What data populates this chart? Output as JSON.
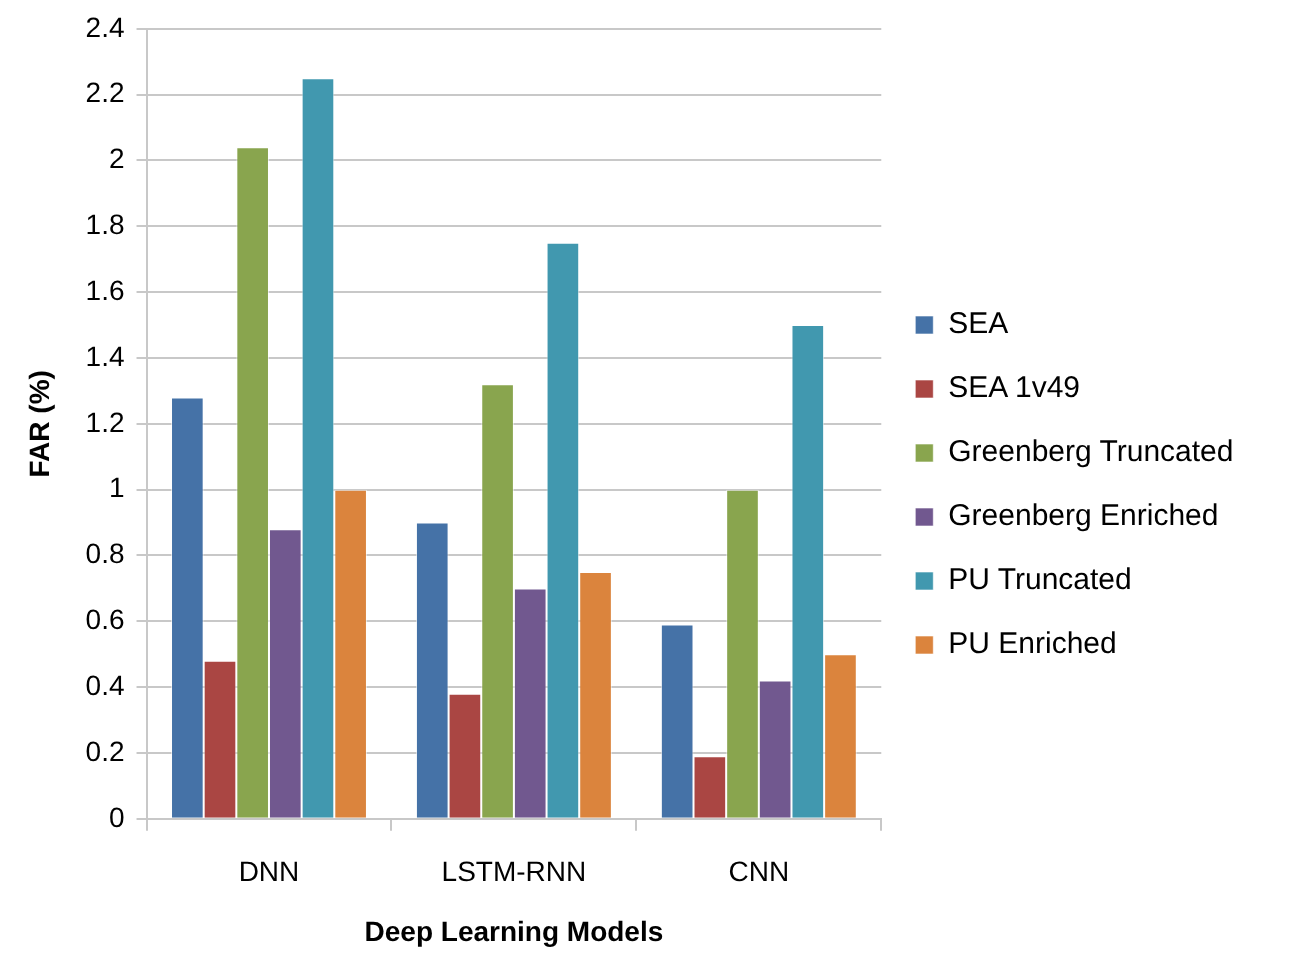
{
  "chart_data": {
    "type": "bar",
    "xlabel": "Deep Learning Models",
    "ylabel": "FAR (%)",
    "categories": [
      "DNN",
      "LSTM-RNN",
      "CNN"
    ],
    "series": [
      {
        "name": "SEA",
        "color": "#4572a7",
        "values": [
          1.28,
          0.9,
          0.59
        ]
      },
      {
        "name": "SEA 1v49",
        "color": "#aa4643",
        "values": [
          0.48,
          0.38,
          0.19
        ]
      },
      {
        "name": "Greenberg Truncated",
        "color": "#89a54e",
        "values": [
          2.04,
          1.32,
          1.0
        ]
      },
      {
        "name": "Greenberg Enriched",
        "color": "#71588f",
        "values": [
          0.88,
          0.7,
          0.42
        ]
      },
      {
        "name": "PU Truncated",
        "color": "#4198af",
        "values": [
          2.25,
          1.75,
          1.5
        ]
      },
      {
        "name": "PU Enriched",
        "color": "#db843d",
        "values": [
          1.0,
          0.75,
          0.5
        ]
      }
    ],
    "ylim": [
      0,
      2.4
    ],
    "yticks": [
      0,
      0.2,
      0.4,
      0.6,
      0.8,
      1,
      1.2,
      1.4,
      1.6,
      1.8,
      2,
      2.2,
      2.4
    ],
    "grid": "y",
    "legend": "right"
  }
}
